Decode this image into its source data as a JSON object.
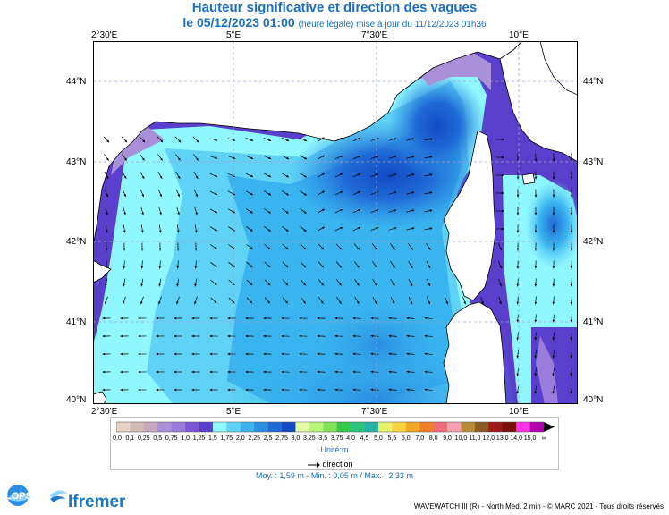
{
  "header": {
    "title": "Hauteur significative et direction des vagues",
    "date_line": "le 05/12/2023 01:00",
    "update_note": "(heure légale) mise à jour du 11/12/2023 01h36"
  },
  "map": {
    "lon_labels": [
      "2°30'E",
      "5°E",
      "7°30'E",
      "10°E"
    ],
    "lat_labels": [
      "44°N",
      "43°N",
      "42°N",
      "41°N",
      "40°N"
    ],
    "water_color": "#a5a5e8",
    "land_color": "#ffffff",
    "coast_color": "#000000"
  },
  "legend": {
    "tick_labels": [
      "0,0",
      "0,1",
      "0,25",
      "0,5",
      "0,75",
      "1,0",
      "1,25",
      "1,5",
      "1,75",
      "2,0",
      "2,25",
      "2,5",
      "2,75",
      "3,0",
      "3,25",
      "3,5",
      "3,75",
      "4,0",
      "4,5",
      "5,0",
      "5,5",
      "6,0",
      "7,0",
      "8,0",
      "9,0",
      "10,0",
      "11,0",
      "12,0",
      "13,0",
      "14,0",
      "15,0",
      "∞"
    ],
    "colors": [
      "#e6d3c3",
      "#d1b9b4",
      "#c7a9bd",
      "#a990d9",
      "#9a7cdc",
      "#7b55d6",
      "#5a3fcc",
      "#8ff7ff",
      "#5fd2f5",
      "#3ab4f0",
      "#2a8ee3",
      "#1f6bd6",
      "#1449c4",
      "#dfffa0",
      "#b8f57a",
      "#7fe35a",
      "#34c947",
      "#2bc47a",
      "#27b0a5",
      "#e9f26a",
      "#f5d341",
      "#f2a72b",
      "#f07f2a",
      "#f06c7a",
      "#f59fb0",
      "#b98a3a",
      "#8d5a21",
      "#a01818",
      "#7a0f0f",
      "#ff33e8",
      "#b000b0",
      "#000000"
    ],
    "unit_label": "Unité:m",
    "direction_label": "direction"
  },
  "stats": {
    "text": "Moy. : 1,59 m   -   Min. : 0,05 m / Max. : 2,33 m"
  },
  "footer": {
    "credit": "WAVEWATCH III (R) - North Med. 2 min - © MARC 2021 - Tous droits réservés",
    "logo_left": "LOPS",
    "logo_right": "Ifremer"
  }
}
